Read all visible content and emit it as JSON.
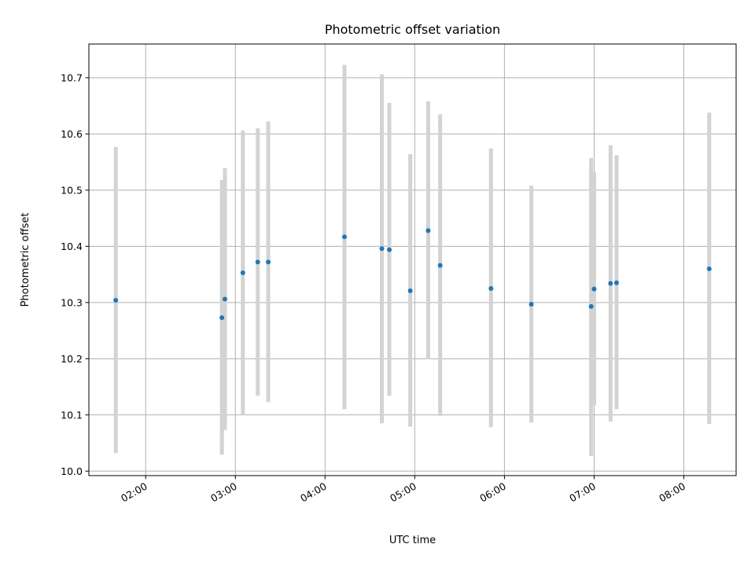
{
  "chart_data": {
    "type": "scatter",
    "title": "Photometric offset variation",
    "xlabel": "UTC time",
    "ylabel": "Photometric offset",
    "x_ticks": [
      "02:00",
      "03:00",
      "04:00",
      "05:00",
      "06:00",
      "07:00",
      "08:00"
    ],
    "y_ticks": [
      "10.0",
      "10.1",
      "10.2",
      "10.3",
      "10.4",
      "10.5",
      "10.6",
      "10.7"
    ],
    "xlim": [
      "01:22",
      "08:35"
    ],
    "ylim": [
      9.992,
      10.76
    ],
    "grid": true,
    "error_bar_color": "#d3d3d3",
    "point_color": "#1f77b4",
    "points": [
      {
        "x": "01:40",
        "y": 10.304,
        "err_low": 10.032,
        "err_high": 10.577
      },
      {
        "x": "02:51",
        "y": 10.273,
        "err_low": 10.029,
        "err_high": 10.518
      },
      {
        "x": "02:53",
        "y": 10.306,
        "err_low": 10.073,
        "err_high": 10.539
      },
      {
        "x": "03:05",
        "y": 10.353,
        "err_low": 10.1,
        "err_high": 10.606
      },
      {
        "x": "03:15",
        "y": 10.372,
        "err_low": 10.134,
        "err_high": 10.61
      },
      {
        "x": "03:22",
        "y": 10.372,
        "err_low": 10.123,
        "err_high": 10.622
      },
      {
        "x": "04:13",
        "y": 10.417,
        "err_low": 10.11,
        "err_high": 10.723
      },
      {
        "x": "04:38",
        "y": 10.396,
        "err_low": 10.085,
        "err_high": 10.706
      },
      {
        "x": "04:43",
        "y": 10.394,
        "err_low": 10.134,
        "err_high": 10.655
      },
      {
        "x": "04:57",
        "y": 10.321,
        "err_low": 10.079,
        "err_high": 10.564
      },
      {
        "x": "05:09",
        "y": 10.428,
        "err_low": 10.199,
        "err_high": 10.658
      },
      {
        "x": "05:17",
        "y": 10.366,
        "err_low": 10.098,
        "err_high": 10.635
      },
      {
        "x": "05:51",
        "y": 10.325,
        "err_low": 10.078,
        "err_high": 10.574
      },
      {
        "x": "06:18",
        "y": 10.297,
        "err_low": 10.086,
        "err_high": 10.508
      },
      {
        "x": "06:58",
        "y": 10.293,
        "err_low": 10.027,
        "err_high": 10.557
      },
      {
        "x": "07:00",
        "y": 10.324,
        "err_low": 10.117,
        "err_high": 10.532
      },
      {
        "x": "07:11",
        "y": 10.334,
        "err_low": 10.088,
        "err_high": 10.58
      },
      {
        "x": "07:15",
        "y": 10.335,
        "err_low": 10.11,
        "err_high": 10.562
      },
      {
        "x": "08:17",
        "y": 10.36,
        "err_low": 10.084,
        "err_high": 10.638
      }
    ]
  }
}
